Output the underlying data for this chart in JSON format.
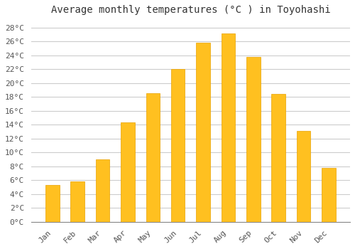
{
  "title": "Average monthly temperatures (°C ) in Toyohashi",
  "months": [
    "Jan",
    "Feb",
    "Mar",
    "Apr",
    "May",
    "Jun",
    "Jul",
    "Aug",
    "Sep",
    "Oct",
    "Nov",
    "Dec"
  ],
  "values": [
    5.3,
    5.8,
    9.0,
    14.3,
    18.6,
    22.0,
    25.8,
    27.2,
    23.8,
    18.4,
    13.1,
    7.8
  ],
  "bar_color": "#FFC020",
  "bar_edge_color": "#E8A000",
  "ylim": [
    0,
    29
  ],
  "ytick_step": 2,
  "background_color": "#FFFFFF",
  "grid_color": "#CCCCCC",
  "title_fontsize": 10,
  "tick_fontsize": 8,
  "font_family": "monospace"
}
